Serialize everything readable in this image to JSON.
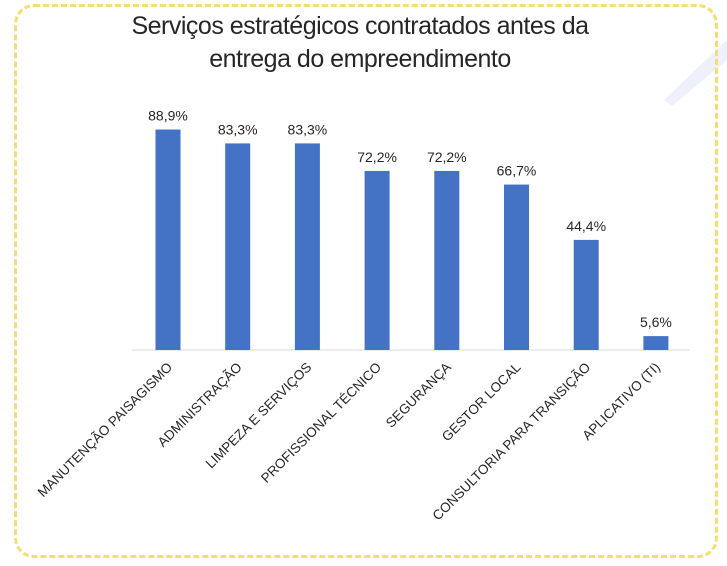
{
  "chart_data": {
    "type": "bar",
    "title": "Serviços estratégicos contratados antes da entrega do empreendimento",
    "title_lines": [
      "Serviços estratégicos contratados antes da",
      "entrega do empreendimento"
    ],
    "categories": [
      "MANUTENÇÃO PAISAGISMO",
      "ADMINISTRAÇÃO",
      "LIMPEZA E SERVIÇOS",
      "PROFISSIONAL TÉCNICO",
      "SEGURANÇA",
      "GESTOR LOCAL",
      "CONSULTORIA PARA TRANSIÇÃO",
      "APLICATIVO (TI)"
    ],
    "values": [
      88.9,
      83.3,
      83.3,
      72.2,
      72.2,
      66.7,
      44.4,
      5.6
    ],
    "data_labels": [
      "88,9%",
      "83,3%",
      "83,3%",
      "72,2%",
      "72,2%",
      "66,7%",
      "44,4%",
      "5,6%"
    ],
    "ylim": [
      0,
      100
    ],
    "grid": false,
    "legend": "none",
    "bar_color": "#4472c4"
  },
  "colors": {
    "frame": "#f7dc6f",
    "decoration": "#eef0fb",
    "text": "#262626",
    "axis": "#d9d9d9"
  }
}
